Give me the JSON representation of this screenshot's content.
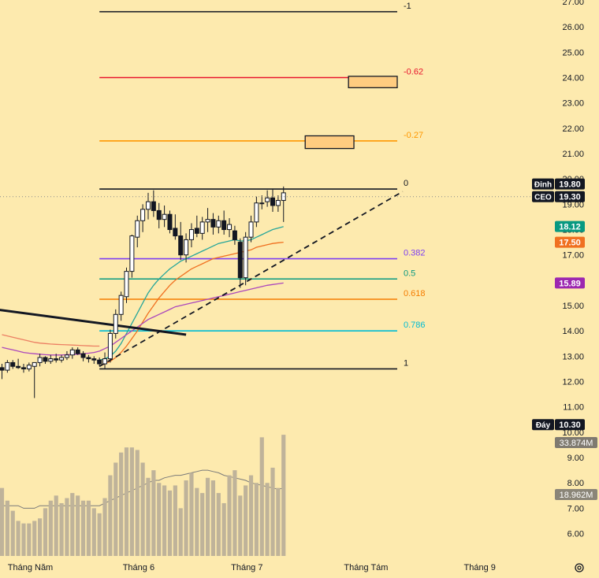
{
  "chart_data": {
    "type": "candlestick",
    "title": "",
    "y_axis": {
      "ticks": [
        {
          "value": 27,
          "label": "27.00"
        },
        {
          "value": 26,
          "label": "26.00"
        },
        {
          "value": 25,
          "label": "25.00"
        },
        {
          "value": 24,
          "label": "24.00"
        },
        {
          "value": 23,
          "label": "23.00"
        },
        {
          "value": 22,
          "label": "22.00"
        },
        {
          "value": 21,
          "label": "21.00"
        },
        {
          "value": 20,
          "label": "20.00"
        },
        {
          "value": 19,
          "label": "19.00"
        },
        {
          "value": 18,
          "label": "18.00"
        },
        {
          "value": 17,
          "label": "17.00"
        },
        {
          "value": 16,
          "label": "16.00"
        },
        {
          "value": 15,
          "label": "15.00"
        },
        {
          "value": 14,
          "label": "14.00"
        },
        {
          "value": 13,
          "label": "13.00"
        },
        {
          "value": 12,
          "label": "12.00"
        },
        {
          "value": 11,
          "label": "11.00"
        },
        {
          "value": 10,
          "label": "10.00"
        },
        {
          "value": 9,
          "label": "9.00"
        },
        {
          "value": 8,
          "label": "8.00"
        },
        {
          "value": 7,
          "label": "7.00"
        },
        {
          "value": 6,
          "label": "6.00"
        }
      ],
      "range": [
        5.5,
        27.2
      ]
    },
    "x_axis": {
      "labels": [
        {
          "label": "Tháng Năm",
          "bar": 0
        },
        {
          "label": "Tháng 6",
          "bar": 20
        },
        {
          "label": "Tháng 7",
          "bar": 40
        },
        {
          "label": "Tháng Tám",
          "bar": 62
        },
        {
          "label": "Tháng 9",
          "bar": 83
        }
      ]
    },
    "candles": [
      [
        12.55,
        12.7,
        12.1,
        12.45
      ],
      [
        12.45,
        12.85,
        12.35,
        12.75
      ],
      [
        12.75,
        12.85,
        12.5,
        12.6
      ],
      [
        12.6,
        12.9,
        12.5,
        12.55
      ],
      [
        12.55,
        12.7,
        12.35,
        12.5
      ],
      [
        12.5,
        12.75,
        12.4,
        12.65
      ],
      [
        12.6,
        12.7,
        11.35,
        12.75
      ],
      [
        12.75,
        13.1,
        12.6,
        12.95
      ],
      [
        12.95,
        13.0,
        12.7,
        12.8
      ],
      [
        12.8,
        13.05,
        12.7,
        12.9
      ],
      [
        12.9,
        13.1,
        12.75,
        12.85
      ],
      [
        12.85,
        13.05,
        12.75,
        12.95
      ],
      [
        12.95,
        13.2,
        12.85,
        13.05
      ],
      [
        13.05,
        13.35,
        12.9,
        13.25
      ],
      [
        13.25,
        13.35,
        13.05,
        13.1
      ],
      [
        13.1,
        13.2,
        12.8,
        12.95
      ],
      [
        12.95,
        13.05,
        12.75,
        12.9
      ],
      [
        12.9,
        13.0,
        12.7,
        12.85
      ],
      [
        12.85,
        12.95,
        12.6,
        12.7
      ],
      [
        12.7,
        13.15,
        12.5,
        12.9
      ],
      [
        12.9,
        14.05,
        12.75,
        13.9
      ],
      [
        13.9,
        14.85,
        13.7,
        14.65
      ],
      [
        14.65,
        15.55,
        14.4,
        15.4
      ],
      [
        15.35,
        16.5,
        15.1,
        16.35
      ],
      [
        16.35,
        17.8,
        16.1,
        17.75
      ],
      [
        17.7,
        18.55,
        17.3,
        18.35
      ],
      [
        18.35,
        19.0,
        17.9,
        18.8
      ],
      [
        18.8,
        19.45,
        18.4,
        19.1
      ],
      [
        19.1,
        19.55,
        18.5,
        18.75
      ],
      [
        18.75,
        19.05,
        18.05,
        18.4
      ],
      [
        18.4,
        18.95,
        18.1,
        18.6
      ],
      [
        18.6,
        18.75,
        17.85,
        18.0
      ],
      [
        18.05,
        18.6,
        17.6,
        17.75
      ],
      [
        17.75,
        18.3,
        16.8,
        17.0
      ],
      [
        17.0,
        17.85,
        16.7,
        17.6
      ],
      [
        17.6,
        18.25,
        17.3,
        18.0
      ],
      [
        18.05,
        18.55,
        17.7,
        17.85
      ],
      [
        17.85,
        18.5,
        17.6,
        18.3
      ],
      [
        18.3,
        18.85,
        17.9,
        18.4
      ],
      [
        18.4,
        18.65,
        17.8,
        18.1
      ],
      [
        18.1,
        18.55,
        17.85,
        18.35
      ],
      [
        18.35,
        18.75,
        17.8,
        18.0
      ],
      [
        18.0,
        18.45,
        17.7,
        18.2
      ],
      [
        17.95,
        18.15,
        17.4,
        17.6
      ],
      [
        17.5,
        17.65,
        15.7,
        16.1
      ],
      [
        16.1,
        17.9,
        15.8,
        17.7
      ],
      [
        17.7,
        18.55,
        17.5,
        18.3
      ],
      [
        18.3,
        19.3,
        18.1,
        19.05
      ],
      [
        19.05,
        19.35,
        18.8,
        19.05
      ],
      [
        19.1,
        19.55,
        18.9,
        19.25
      ],
      [
        19.25,
        19.6,
        18.7,
        18.95
      ],
      [
        18.95,
        19.35,
        18.7,
        19.15
      ],
      [
        19.15,
        19.7,
        18.3,
        19.45
      ]
    ],
    "volume": {
      "values": [
        7.8,
        7.3,
        6.9,
        6.5,
        6.4,
        6.4,
        6.5,
        6.6,
        7.0,
        7.3,
        7.5,
        7.2,
        7.4,
        7.6,
        7.5,
        7.3,
        7.3,
        7.0,
        6.8,
        7.4,
        8.3,
        8.8,
        9.2,
        9.4,
        9.4,
        9.3,
        8.8,
        8.2,
        8.5,
        8.0,
        7.9,
        7.7,
        7.9,
        7.0,
        8.1,
        8.4,
        7.8,
        7.6,
        8.2,
        8.1,
        7.6,
        7.2,
        8.3,
        8.5,
        7.5,
        7.9,
        8.3,
        8.0,
        9.8,
        8.0,
        8.6,
        7.8,
        9.9
      ],
      "ma": [
        7.1,
        7.1,
        7.1,
        7.1,
        7.0,
        7.0,
        7.0,
        7.1,
        7.1,
        7.1,
        7.1,
        7.1,
        7.1,
        7.1,
        7.1,
        7.1,
        7.1,
        7.1,
        7.1,
        7.2,
        7.3,
        7.4,
        7.5,
        7.6,
        7.7,
        7.8,
        7.9,
        8.0,
        8.1,
        8.1,
        8.2,
        8.25,
        8.3,
        8.3,
        8.35,
        8.4,
        8.45,
        8.5,
        8.5,
        8.45,
        8.4,
        8.3,
        8.25,
        8.2,
        8.15,
        8.1,
        8.0,
        7.95,
        7.9,
        7.85,
        7.8,
        7.75,
        7.8
      ],
      "labels": [
        "33.874M",
        "18.962M"
      ]
    },
    "moving_averages": [
      {
        "color": "#26a69a",
        "values": [
          null,
          null,
          null,
          null,
          null,
          null,
          null,
          null,
          null,
          null,
          null,
          null,
          null,
          null,
          null,
          null,
          null,
          null,
          12.85,
          12.9,
          13.0,
          13.2,
          13.5,
          13.9,
          14.3,
          14.7,
          15.1,
          15.5,
          15.8,
          16.05,
          16.25,
          16.45,
          16.6,
          16.75,
          16.85,
          16.95,
          17.05,
          17.15,
          17.25,
          17.35,
          17.45,
          17.5,
          17.55,
          17.6,
          17.55,
          17.55,
          17.6,
          17.7,
          17.8,
          17.9,
          18.0,
          18.06,
          18.12
        ]
      },
      {
        "color": "#f07020",
        "values": [
          null,
          null,
          null,
          null,
          null,
          null,
          null,
          null,
          null,
          null,
          null,
          null,
          null,
          null,
          null,
          null,
          null,
          null,
          12.6,
          12.7,
          12.8,
          12.95,
          13.15,
          13.4,
          13.7,
          14.0,
          14.35,
          14.7,
          15.0,
          15.3,
          15.55,
          15.8,
          16.0,
          16.15,
          16.3,
          16.45,
          16.55,
          16.65,
          16.75,
          16.85,
          16.9,
          16.95,
          17.0,
          17.05,
          17.1,
          17.15,
          17.2,
          17.3,
          17.35,
          17.4,
          17.45,
          17.48,
          17.5
        ]
      },
      {
        "color": "#ab47bc",
        "values": [
          13.35,
          13.3,
          13.25,
          13.2,
          13.15,
          13.12,
          13.1,
          13.08,
          13.06,
          13.05,
          13.05,
          13.05,
          13.06,
          13.07,
          13.08,
          13.1,
          13.12,
          13.15,
          13.2,
          13.3,
          13.4,
          13.55,
          13.7,
          13.85,
          14.0,
          14.15,
          14.3,
          14.45,
          14.55,
          14.65,
          14.75,
          14.85,
          14.95,
          15.0,
          15.05,
          15.1,
          15.15,
          15.2,
          15.25,
          15.3,
          15.35,
          15.4,
          15.45,
          15.5,
          15.55,
          15.6,
          15.65,
          15.7,
          15.75,
          15.8,
          15.83,
          15.86,
          15.89
        ]
      },
      {
        "color": "#ec7f63",
        "values": [
          13.85,
          13.8,
          13.75,
          13.7,
          13.65,
          13.6,
          13.55,
          13.52,
          13.5,
          13.48,
          13.47,
          13.46,
          13.45,
          13.44,
          13.43,
          13.42,
          13.41,
          13.4,
          13.4
        ]
      }
    ],
    "fibonacci": {
      "start_bar": 18,
      "end_bar": 73,
      "levels": [
        {
          "ratio": "-1",
          "price": 26.6,
          "color": "#131722"
        },
        {
          "ratio": "-0.62",
          "price": 24.0,
          "color": "#e8142d"
        },
        {
          "ratio": "-0.27",
          "price": 21.5,
          "color": "#ff9800"
        },
        {
          "ratio": "0",
          "price": 19.6,
          "color": "#131722"
        },
        {
          "ratio": "0.382",
          "price": 16.85,
          "color": "#7e3ff2"
        },
        {
          "ratio": "0.5",
          "price": 16.05,
          "color": "#089981"
        },
        {
          "ratio": "0.618",
          "price": 15.25,
          "color": "#f57c00"
        },
        {
          "ratio": "0.786",
          "price": 14.0,
          "color": "#00bcd4"
        },
        {
          "ratio": "1",
          "price": 12.5,
          "color": "#131722"
        }
      ]
    },
    "target_boxes": [
      {
        "bar_from": 64,
        "bar_to": 73,
        "low": 23.6,
        "high": 24.05
      },
      {
        "bar_from": 56,
        "bar_to": 65,
        "low": 21.2,
        "high": 21.7
      }
    ],
    "trendlines": [
      {
        "from": {
          "bar": -3,
          "price": 14.9
        },
        "to": {
          "bar": 34,
          "price": 13.85
        },
        "style": "solid"
      },
      {
        "from": {
          "bar": 18,
          "price": 12.6
        },
        "to": {
          "bar": 74,
          "price": 19.5
        },
        "style": "dashed"
      }
    ],
    "price_markers": [
      {
        "tag": "Đỉnh",
        "value": "19.80",
        "price": 19.8,
        "color": "#131722"
      },
      {
        "tag": "CEO",
        "value": "19.30",
        "price": 19.3,
        "color": "#131722"
      },
      {
        "value": "18.12",
        "price": 18.12,
        "color": "#089981"
      },
      {
        "value": "17.50",
        "price": 17.5,
        "color": "#f07020"
      },
      {
        "value": "15.89",
        "price": 15.89,
        "color": "#9c27b0"
      },
      {
        "tag": "Đáy",
        "value": "10.30",
        "price": 10.3,
        "color": "#131722"
      }
    ],
    "current_price": 19.3
  }
}
